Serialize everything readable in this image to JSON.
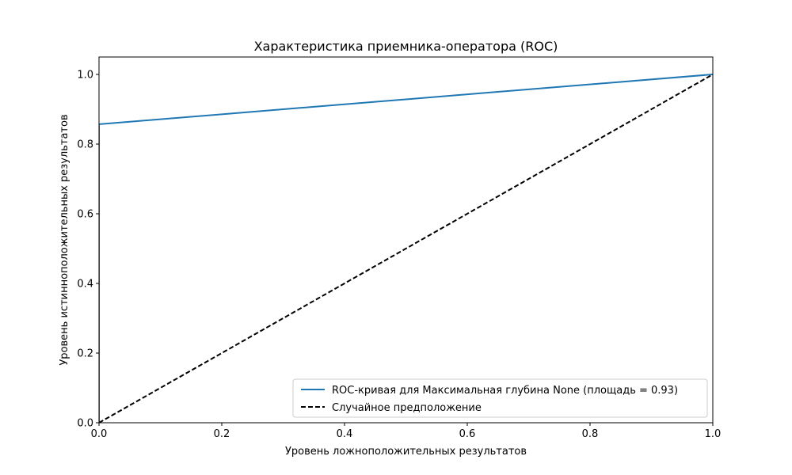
{
  "chart_data": {
    "type": "line",
    "title": "Характеристика приемника-оператора (ROC)",
    "xlabel": "Уровень ложноположительных результатов",
    "ylabel": "Уровень истинноположительных результатов",
    "xlim": [
      0.0,
      1.0
    ],
    "ylim": [
      0.0,
      1.05
    ],
    "xticks": [
      0.0,
      0.2,
      0.4,
      0.6,
      0.8,
      1.0
    ],
    "yticks": [
      0.0,
      0.2,
      0.4,
      0.6,
      0.8,
      1.0
    ],
    "xtick_labels": [
      "0.0",
      "0.2",
      "0.4",
      "0.6",
      "0.8",
      "1.0"
    ],
    "ytick_labels": [
      "0.0",
      "0.2",
      "0.4",
      "0.6",
      "0.8",
      "1.0"
    ],
    "grid": false,
    "legend_position": "bottom-right",
    "series": [
      {
        "name": "ROC-кривая для Максимальная глубина None (площадь = 0.93)",
        "x": [
          0.0,
          0.0,
          1.0
        ],
        "y": [
          0.0,
          0.857,
          1.0
        ],
        "color": "#1f77b4",
        "style": "solid"
      },
      {
        "name": "Случайное предположение",
        "x": [
          0.0,
          1.0
        ],
        "y": [
          0.0,
          1.0
        ],
        "color": "#000000",
        "style": "dashed"
      }
    ]
  }
}
